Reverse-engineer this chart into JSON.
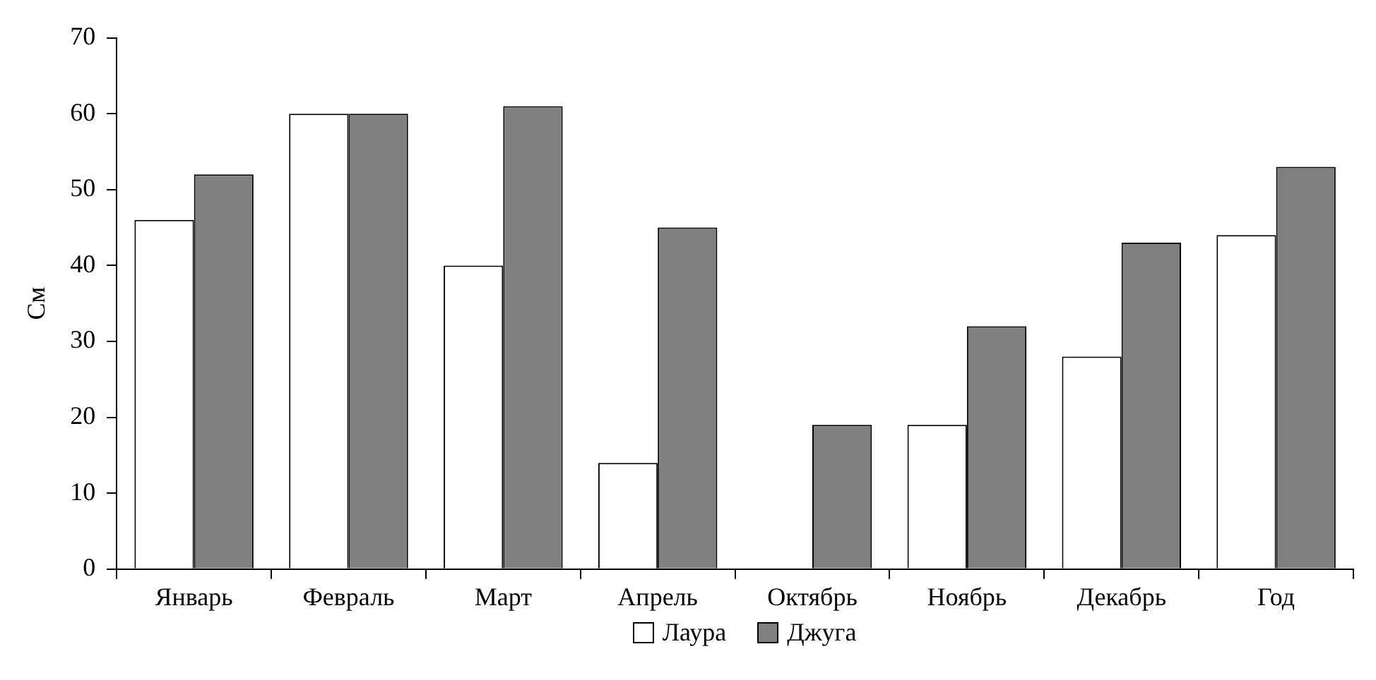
{
  "chart_data": {
    "type": "bar",
    "ylabel": "См",
    "categories": [
      "Январь",
      "Февраль",
      "Март",
      "Апрель",
      "Октябрь",
      "Ноябрь",
      "Декабрь",
      "Год"
    ],
    "series": [
      {
        "name": "Лаура",
        "color": "#ffffff",
        "values": [
          46,
          60,
          40,
          14,
          null,
          19,
          28,
          44
        ]
      },
      {
        "name": "Джуга",
        "color": "#808080",
        "values": [
          52,
          60,
          61,
          45,
          19,
          32,
          43,
          53
        ]
      }
    ],
    "ylim": [
      0,
      70
    ],
    "yticks": [
      0,
      10,
      20,
      30,
      40,
      50,
      60,
      70
    ],
    "grid": false,
    "legend": "bottom"
  }
}
